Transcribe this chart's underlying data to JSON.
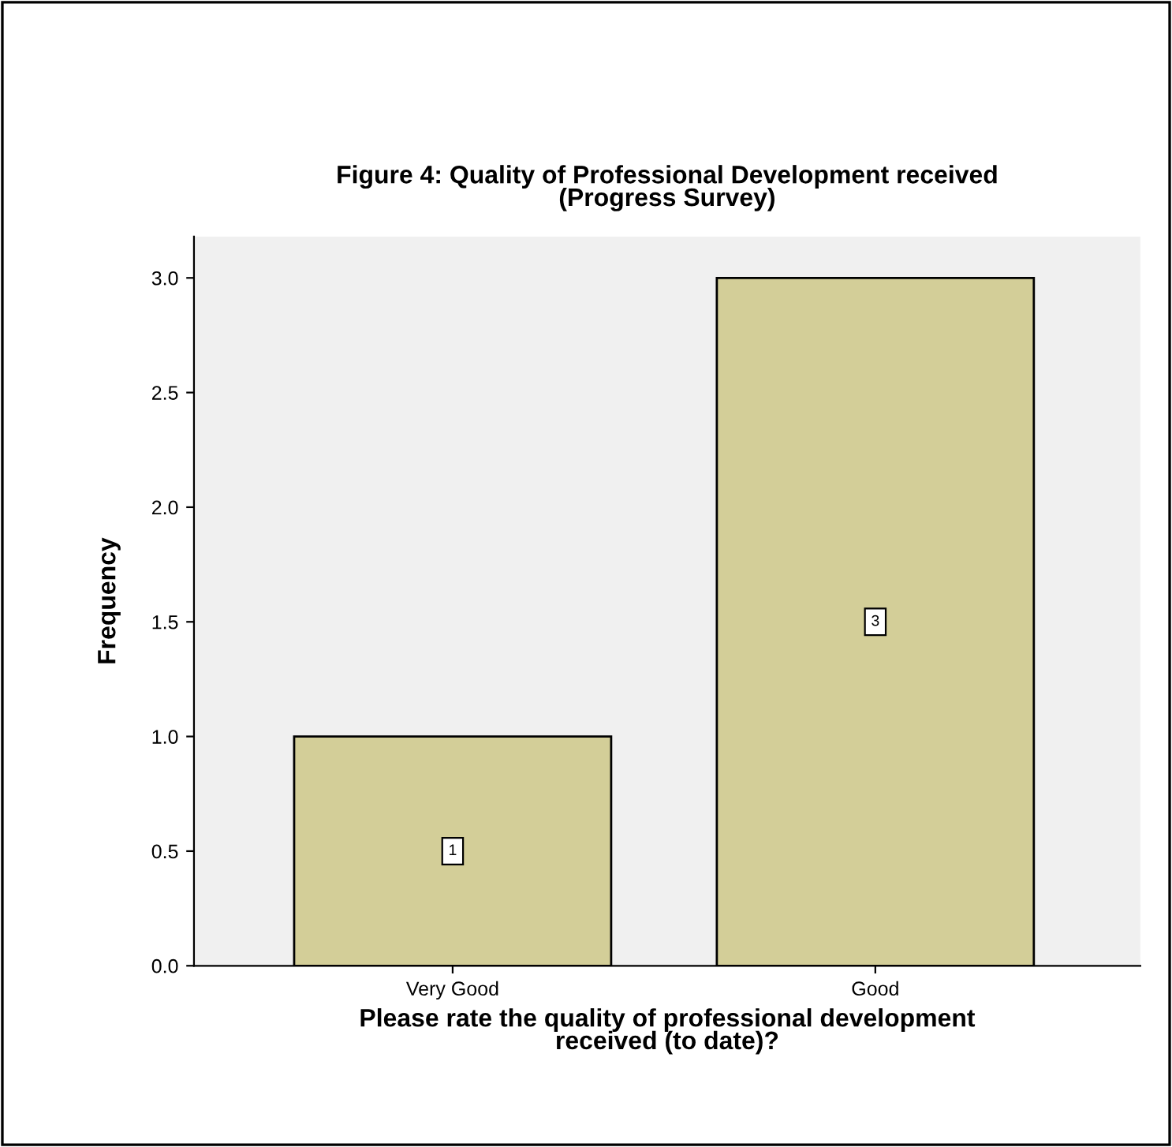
{
  "chart_data": {
    "type": "bar",
    "title": "Figure 4: Quality of Professional Development received\n(Progress Survey)",
    "xlabel": "Please rate the quality of professional development\nreceived (to date)?",
    "ylabel": "Frequency",
    "categories": [
      "Very Good",
      "Good"
    ],
    "values": [
      1,
      3
    ],
    "color": "#d3ce98",
    "ylim": [
      0,
      3.18
    ],
    "yticks": [
      {
        "value": 0,
        "label": "0.0"
      },
      {
        "value": 0.5,
        "label": "0.5"
      },
      {
        "value": 1,
        "label": "1.0"
      },
      {
        "value": 1.5,
        "label": "1.5"
      },
      {
        "value": 2,
        "label": "2.0"
      },
      {
        "value": 2.5,
        "label": "2.5"
      },
      {
        "value": 3,
        "label": "3.0"
      }
    ],
    "data_labels": true,
    "grid": false,
    "legend": false
  }
}
